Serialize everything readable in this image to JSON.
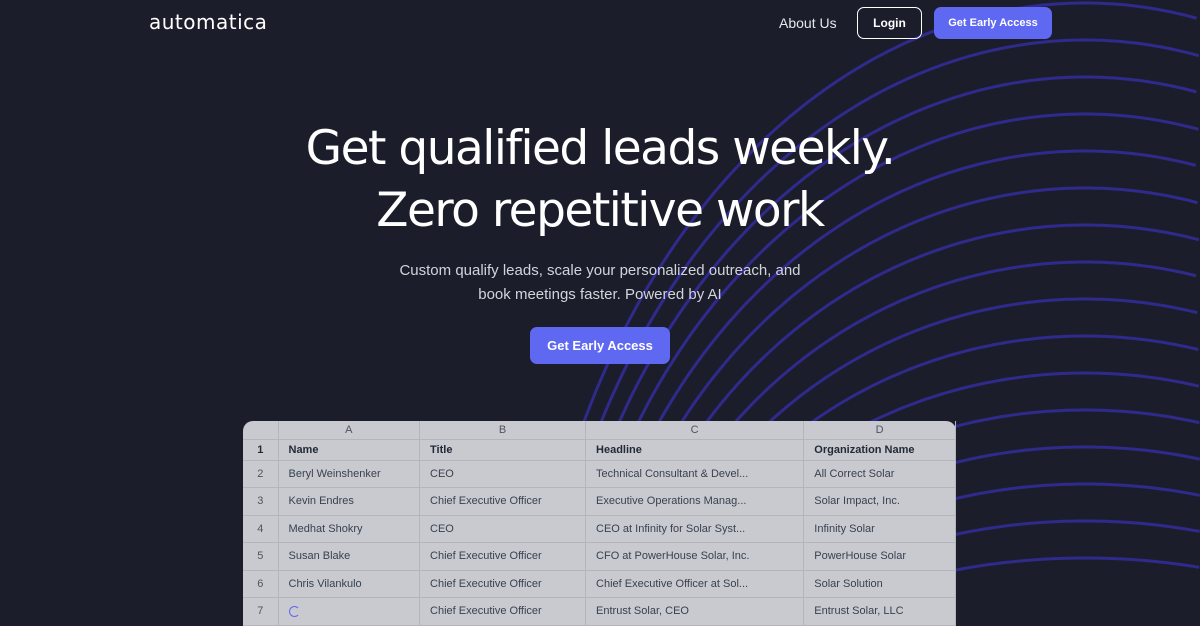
{
  "nav": {
    "logo": "automatica",
    "about": "About Us",
    "login": "Login",
    "cta": "Get Early Access"
  },
  "hero": {
    "title_line1": "Get qualified leads weekly.",
    "title_line2": "Zero repetitive work",
    "subtitle_line1": "Custom qualify leads, scale your personalized outreach, and",
    "subtitle_line2": "book meetings faster. Powered by AI",
    "cta": "Get Early Access"
  },
  "colors": {
    "background": "#1b1e2a",
    "accent": "#5f68f1",
    "arcs": "#2f2a8c"
  },
  "sheet": {
    "columns": [
      "A",
      "B",
      "C",
      "D"
    ],
    "headers": [
      "Name",
      "Title",
      "Headline",
      "Organization Name"
    ],
    "rows": [
      [
        "Beryl Weinshenker",
        "CEO",
        "Technical Consultant & Devel...",
        "All Correct Solar"
      ],
      [
        "Kevin Endres",
        "Chief Executive Officer",
        "Executive Operations Manag...",
        "Solar Impact, Inc."
      ],
      [
        "Medhat Shokry",
        "CEO",
        "CEO at Infinity for Solar Syst...",
        "Infinity Solar"
      ],
      [
        "Susan Blake",
        "Chief Executive Officer",
        "CFO at PowerHouse Solar, Inc.",
        "PowerHouse Solar"
      ],
      [
        "Chris Vilankulo",
        "Chief Executive Officer",
        "Chief Executive Officer at Sol...",
        "Solar Solution"
      ],
      [
        "",
        "Chief Executive Officer",
        "Entrust Solar, CEO",
        "Entrust Solar, LLC"
      ]
    ],
    "row_numbers": [
      "1",
      "2",
      "3",
      "4",
      "5",
      "6",
      "7"
    ]
  }
}
